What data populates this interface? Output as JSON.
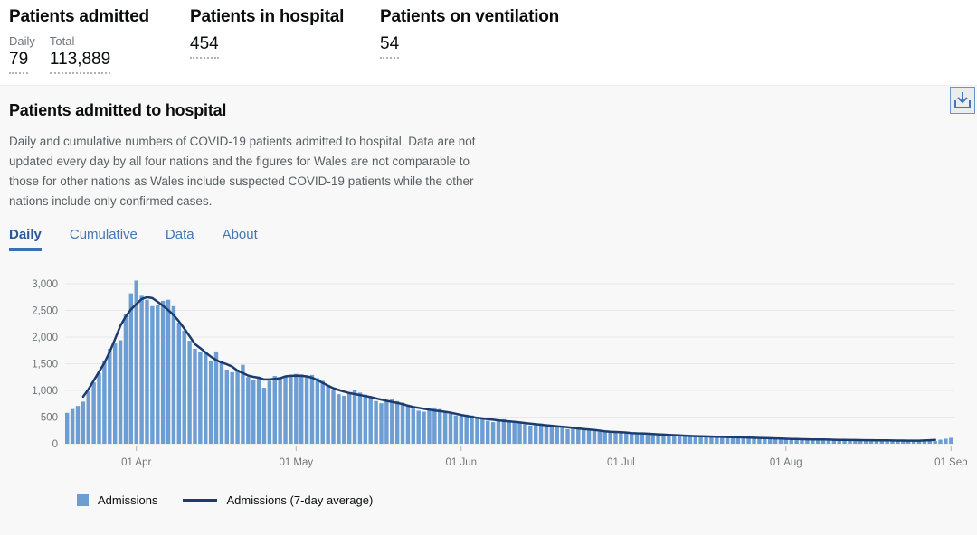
{
  "summary": {
    "cards": [
      {
        "title": "Patients admitted",
        "metrics": [
          {
            "label": "Daily",
            "value": "79"
          },
          {
            "label": "Total",
            "value": "113,889"
          }
        ]
      },
      {
        "title": "Patients in hospital",
        "metrics": [
          {
            "label": "",
            "value": "454"
          }
        ]
      },
      {
        "title": "Patients on ventilation",
        "metrics": [
          {
            "label": "",
            "value": "54"
          }
        ]
      }
    ]
  },
  "panel": {
    "title": "Patients admitted to hospital",
    "description": "Daily and cumulative numbers of COVID-19 patients admitted to hospital. Data are not updated every day by all four nations and the figures for Wales are not comparable to those for other nations as Wales include suspected COVID-19 patients while the other nations include only confirmed cases.",
    "download_icon": "download-icon",
    "tabs": [
      {
        "label": "Daily",
        "active": true
      },
      {
        "label": "Cumulative",
        "active": false
      },
      {
        "label": "Data",
        "active": false
      },
      {
        "label": "About",
        "active": false
      }
    ]
  },
  "chart_data": {
    "type": "bar",
    "title": "",
    "xlabel": "",
    "ylabel": "",
    "ylim": [
      0,
      3000
    ],
    "grid": "horizontal",
    "legend_position": "bottom",
    "y_ticks": [
      "0",
      "500",
      "1,000",
      "1,500",
      "2,000",
      "2,500",
      "3,000"
    ],
    "x_ticks": [
      {
        "label": "01 Apr",
        "day_index": 13
      },
      {
        "label": "01 May",
        "day_index": 43
      },
      {
        "label": "01 Jun",
        "day_index": 74
      },
      {
        "label": "01 Jul",
        "day_index": 104
      },
      {
        "label": "01 Aug",
        "day_index": 135
      },
      {
        "label": "01 Sep",
        "day_index": 166
      }
    ],
    "series": [
      {
        "name": "Admissions",
        "type": "bar",
        "color": "#6d9ed3",
        "start": "19 Mar",
        "values": [
          580,
          650,
          710,
          790,
          980,
          1150,
          1320,
          1560,
          1780,
          1880,
          1940,
          2440,
          2820,
          3060,
          2790,
          2700,
          2580,
          2600,
          2680,
          2700,
          2580,
          2270,
          2120,
          1930,
          1780,
          1730,
          1700,
          1560,
          1730,
          1540,
          1390,
          1340,
          1390,
          1480,
          1250,
          1200,
          1230,
          1050,
          1180,
          1270,
          1250,
          1250,
          1280,
          1310,
          1300,
          1250,
          1290,
          1230,
          1180,
          1100,
          1000,
          930,
          900,
          950,
          1000,
          960,
          920,
          870,
          800,
          760,
          810,
          830,
          800,
          770,
          720,
          660,
          620,
          600,
          660,
          680,
          650,
          600,
          560,
          530,
          520,
          545,
          530,
          500,
          475,
          430,
          405,
          440,
          460,
          440,
          425,
          400,
          365,
          340,
          370,
          380,
          365,
          345,
          330,
          295,
          275,
          305,
          310,
          295,
          275,
          250,
          225,
          215,
          240,
          225,
          205,
          220,
          210,
          195,
          180,
          168,
          185,
          195,
          180,
          168,
          155,
          142,
          134,
          150,
          160,
          147,
          138,
          130,
          121,
          112,
          130,
          138,
          130,
          121,
          112,
          104,
          97,
          110,
          114,
          105,
          97,
          91,
          82,
          78,
          86,
          92,
          86,
          81,
          73,
          67,
          76,
          81,
          76,
          71,
          67,
          62,
          59,
          67,
          73,
          67,
          62,
          59,
          54,
          52,
          61,
          65,
          61,
          57,
          54,
          50,
          76,
          94,
          111
        ]
      },
      {
        "name": "Admissions (7-day average)",
        "type": "line",
        "color": "#1c3c6e",
        "derived": "centered 7-day moving average of Admissions"
      }
    ]
  }
}
